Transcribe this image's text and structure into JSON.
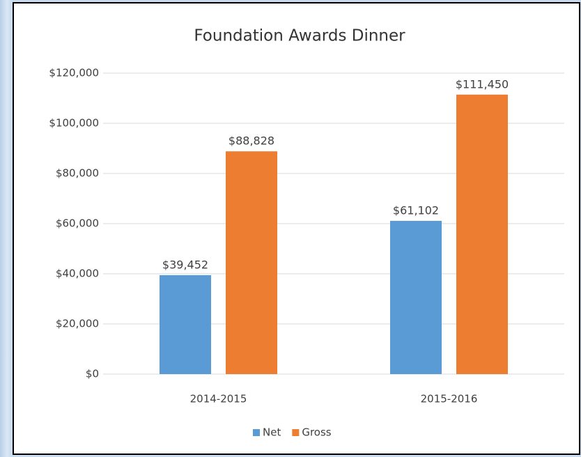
{
  "chart_data": {
    "type": "bar",
    "title": "Foundation Awards Dinner",
    "categories": [
      "2014-2015",
      "2015-2016"
    ],
    "series": [
      {
        "name": "Net",
        "color": "#5b9bd5",
        "values": [
          39452,
          61102
        ],
        "value_labels": [
          "$39,452",
          "$61,102"
        ]
      },
      {
        "name": "Gross",
        "color": "#ed7d31",
        "values": [
          88828,
          111450
        ],
        "value_labels": [
          "$88,828",
          "$111,450"
        ]
      }
    ],
    "ylim": [
      0,
      120000
    ],
    "yticks": [
      {
        "value": 0,
        "label": "$0"
      },
      {
        "value": 20000,
        "label": "$20,000"
      },
      {
        "value": 40000,
        "label": "$40,000"
      },
      {
        "value": 60000,
        "label": "$60,000"
      },
      {
        "value": 80000,
        "label": "$80,000"
      },
      {
        "value": 100000,
        "label": "$100,000"
      },
      {
        "value": 120000,
        "label": "$120,000"
      }
    ],
    "grid": true,
    "legend": "bottom"
  }
}
